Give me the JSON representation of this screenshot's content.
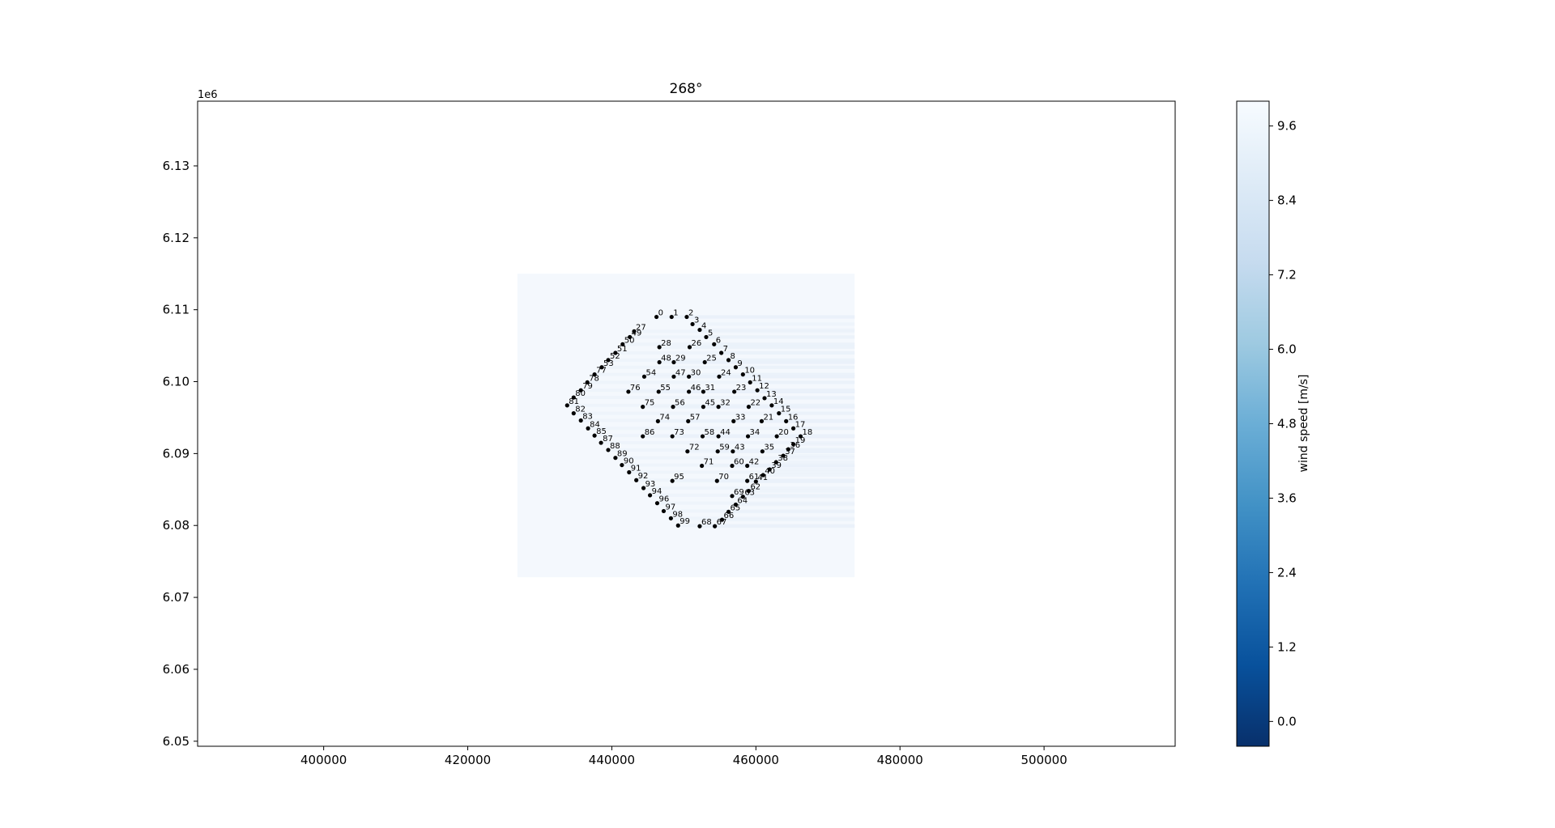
{
  "chart_data": {
    "type": "scatter",
    "title": "268°",
    "xlabel": "",
    "ylabel": "",
    "y_offset_text": "1e6",
    "xlim": [
      382500,
      518200
    ],
    "ylim": [
      6.0493,
      6.139
    ],
    "xticks": [
      400000,
      420000,
      440000,
      460000,
      480000,
      500000
    ],
    "yticks": [
      6.05,
      6.06,
      6.07,
      6.08,
      6.09,
      6.1,
      6.11,
      6.12,
      6.13
    ],
    "ytick_labels": [
      "6.05",
      "6.06",
      "6.07",
      "6.08",
      "6.09",
      "6.10",
      "6.11",
      "6.12",
      "6.13"
    ],
    "grid": false,
    "flow_field": {
      "xrange": [
        426900,
        473700
      ],
      "yrange": [
        6.0728,
        6.115
      ],
      "free_stream_color": "#f4f8fd",
      "wake_color": "#e9f1fa"
    },
    "colorbar": {
      "label": "wind speed [m/s]",
      "range": [
        -0.4,
        10.0
      ],
      "ticks": [
        0.0,
        1.2,
        2.4,
        3.6,
        4.8,
        6.0,
        7.2,
        8.4,
        9.6
      ],
      "tick_labels": [
        "0.0",
        "1.2",
        "2.4",
        "3.6",
        "4.8",
        "6.0",
        "7.2",
        "8.4",
        "9.6"
      ],
      "colormap": "Blues_r",
      "stops": [
        "#08306b",
        "#08519c",
        "#2171b5",
        "#4292c6",
        "#6baed6",
        "#9ecae1",
        "#c6dbef",
        "#deebf7",
        "#f7fbff"
      ]
    },
    "turbines": [
      {
        "id": "0",
        "x": 446200,
        "y": 6.109
      },
      {
        "id": "1",
        "x": 448300,
        "y": 6.109
      },
      {
        "id": "2",
        "x": 450400,
        "y": 6.109
      },
      {
        "id": "3",
        "x": 451200,
        "y": 6.108
      },
      {
        "id": "4",
        "x": 452200,
        "y": 6.1072
      },
      {
        "id": "5",
        "x": 453100,
        "y": 6.1062
      },
      {
        "id": "6",
        "x": 454200,
        "y": 6.1052
      },
      {
        "id": "7",
        "x": 455200,
        "y": 6.104
      },
      {
        "id": "8",
        "x": 456200,
        "y": 6.103
      },
      {
        "id": "9",
        "x": 457200,
        "y": 6.102
      },
      {
        "id": "10",
        "x": 458200,
        "y": 6.101
      },
      {
        "id": "11",
        "x": 459200,
        "y": 6.0999
      },
      {
        "id": "12",
        "x": 460200,
        "y": 6.0988
      },
      {
        "id": "13",
        "x": 461200,
        "y": 6.0977
      },
      {
        "id": "14",
        "x": 462200,
        "y": 6.0967
      },
      {
        "id": "15",
        "x": 463200,
        "y": 6.0956
      },
      {
        "id": "16",
        "x": 464200,
        "y": 6.0945
      },
      {
        "id": "17",
        "x": 465200,
        "y": 6.0935
      },
      {
        "id": "18",
        "x": 466200,
        "y": 6.0924
      },
      {
        "id": "19",
        "x": 465200,
        "y": 6.0913
      },
      {
        "id": "20",
        "x": 462900,
        "y": 6.0924
      },
      {
        "id": "21",
        "x": 460800,
        "y": 6.0945
      },
      {
        "id": "22",
        "x": 459000,
        "y": 6.0965
      },
      {
        "id": "23",
        "x": 457000,
        "y": 6.0986
      },
      {
        "id": "24",
        "x": 454900,
        "y": 6.1007
      },
      {
        "id": "25",
        "x": 452900,
        "y": 6.1027
      },
      {
        "id": "26",
        "x": 450800,
        "y": 6.1048
      },
      {
        "id": "27",
        "x": 443100,
        "y": 6.107
      },
      {
        "id": "28",
        "x": 446600,
        "y": 6.1048
      },
      {
        "id": "29",
        "x": 448600,
        "y": 6.1027
      },
      {
        "id": "30",
        "x": 450700,
        "y": 6.1007
      },
      {
        "id": "31",
        "x": 452700,
        "y": 6.0986
      },
      {
        "id": "32",
        "x": 454800,
        "y": 6.0965
      },
      {
        "id": "33",
        "x": 456900,
        "y": 6.0945
      },
      {
        "id": "34",
        "x": 458900,
        "y": 6.0924
      },
      {
        "id": "35",
        "x": 460900,
        "y": 6.0903
      },
      {
        "id": "36",
        "x": 464500,
        "y": 6.0906
      },
      {
        "id": "37",
        "x": 463800,
        "y": 6.0897
      },
      {
        "id": "38",
        "x": 462800,
        "y": 6.0888
      },
      {
        "id": "39",
        "x": 461900,
        "y": 6.0878
      },
      {
        "id": "40",
        "x": 461000,
        "y": 6.087
      },
      {
        "id": "41",
        "x": 460000,
        "y": 6.0861
      },
      {
        "id": "42",
        "x": 458800,
        "y": 6.0883
      },
      {
        "id": "43",
        "x": 456800,
        "y": 6.0903
      },
      {
        "id": "44",
        "x": 454800,
        "y": 6.0924
      },
      {
        "id": "45",
        "x": 452700,
        "y": 6.0965
      },
      {
        "id": "46",
        "x": 450700,
        "y": 6.0986
      },
      {
        "id": "47",
        "x": 448600,
        "y": 6.1007
      },
      {
        "id": "48",
        "x": 446600,
        "y": 6.1027
      },
      {
        "id": "49",
        "x": 442500,
        "y": 6.1062
      },
      {
        "id": "50",
        "x": 441500,
        "y": 6.1052
      },
      {
        "id": "51",
        "x": 440500,
        "y": 6.104
      },
      {
        "id": "52",
        "x": 439500,
        "y": 6.103
      },
      {
        "id": "53",
        "x": 438600,
        "y": 6.102
      },
      {
        "id": "54",
        "x": 444500,
        "y": 6.1007
      },
      {
        "id": "55",
        "x": 446500,
        "y": 6.0986
      },
      {
        "id": "56",
        "x": 448500,
        "y": 6.0965
      },
      {
        "id": "57",
        "x": 450600,
        "y": 6.0945
      },
      {
        "id": "58",
        "x": 452600,
        "y": 6.0924
      },
      {
        "id": "59",
        "x": 454700,
        "y": 6.0903
      },
      {
        "id": "60",
        "x": 456700,
        "y": 6.0883
      },
      {
        "id": "61",
        "x": 458800,
        "y": 6.0862
      },
      {
        "id": "62",
        "x": 459000,
        "y": 6.0848
      },
      {
        "id": "63",
        "x": 458200,
        "y": 6.084
      },
      {
        "id": "64",
        "x": 457200,
        "y": 6.0829
      },
      {
        "id": "65",
        "x": 456200,
        "y": 6.0819
      },
      {
        "id": "66",
        "x": 455300,
        "y": 6.0808
      },
      {
        "id": "67",
        "x": 454300,
        "y": 6.0799
      },
      {
        "id": "68",
        "x": 452200,
        "y": 6.0799
      },
      {
        "id": "69",
        "x": 456700,
        "y": 6.0841
      },
      {
        "id": "70",
        "x": 454600,
        "y": 6.0862
      },
      {
        "id": "71",
        "x": 452500,
        "y": 6.0883
      },
      {
        "id": "72",
        "x": 450500,
        "y": 6.0903
      },
      {
        "id": "73",
        "x": 448400,
        "y": 6.0924
      },
      {
        "id": "74",
        "x": 446400,
        "y": 6.0945
      },
      {
        "id": "75",
        "x": 444300,
        "y": 6.0965
      },
      {
        "id": "76",
        "x": 442300,
        "y": 6.0986
      },
      {
        "id": "77",
        "x": 437600,
        "y": 6.101
      },
      {
        "id": "78",
        "x": 436600,
        "y": 6.0999
      },
      {
        "id": "79",
        "x": 435700,
        "y": 6.0988
      },
      {
        "id": "80",
        "x": 434700,
        "y": 6.0978
      },
      {
        "id": "81",
        "x": 433800,
        "y": 6.0967
      },
      {
        "id": "82",
        "x": 434700,
        "y": 6.0956
      },
      {
        "id": "83",
        "x": 435700,
        "y": 6.0946
      },
      {
        "id": "84",
        "x": 436700,
        "y": 6.0935
      },
      {
        "id": "85",
        "x": 437600,
        "y": 6.0925
      },
      {
        "id": "86",
        "x": 444300,
        "y": 6.0924
      },
      {
        "id": "87",
        "x": 438500,
        "y": 6.0915
      },
      {
        "id": "88",
        "x": 439500,
        "y": 6.0905
      },
      {
        "id": "89",
        "x": 440500,
        "y": 6.0894
      },
      {
        "id": "90",
        "x": 441400,
        "y": 6.0884
      },
      {
        "id": "91",
        "x": 442400,
        "y": 6.0874
      },
      {
        "id": "92",
        "x": 443400,
        "y": 6.0863
      },
      {
        "id": "93",
        "x": 444400,
        "y": 6.0852
      },
      {
        "id": "94",
        "x": 445300,
        "y": 6.0842
      },
      {
        "id": "95",
        "x": 448400,
        "y": 6.0862
      },
      {
        "id": "96",
        "x": 446300,
        "y": 6.0831
      },
      {
        "id": "97",
        "x": 447200,
        "y": 6.082
      },
      {
        "id": "98",
        "x": 448200,
        "y": 6.081
      },
      {
        "id": "99",
        "x": 449200,
        "y": 6.08
      }
    ]
  }
}
